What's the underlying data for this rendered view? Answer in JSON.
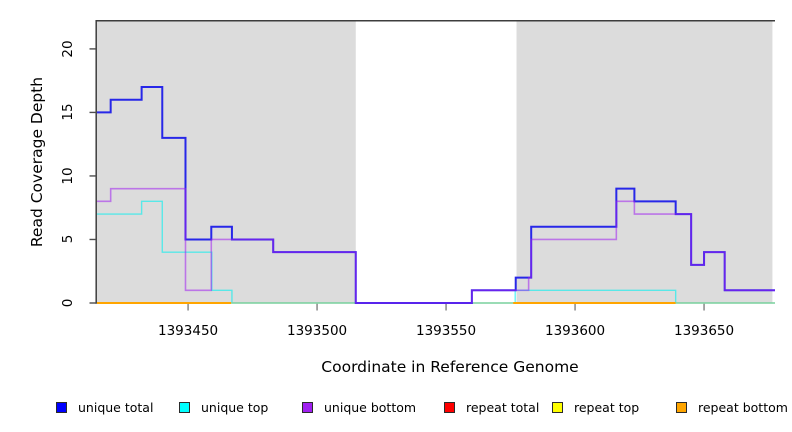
{
  "chart_data": {
    "type": "line",
    "subtype": "step-post",
    "title": "",
    "xlabel": "Coordinate in Reference Genome",
    "ylabel": "Read Coverage Depth",
    "xlim": [
      1393414.7,
      1393677.5
    ],
    "ylim": [
      0,
      22.2
    ],
    "x_ticks": [
      1393450,
      1393500,
      1393550,
      1393600,
      1393650
    ],
    "y_ticks": [
      0,
      5,
      10,
      15,
      20
    ],
    "grid": false,
    "legend_position": "bottom-horizontal",
    "background_color": "#ffffff",
    "shaded_region_color": "#dcdcdc",
    "shaded_regions": [
      {
        "x0": 1393414.7,
        "x1": 1393515
      },
      {
        "x0": 1393577.3,
        "x1": 1393676.5
      }
    ],
    "series": [
      {
        "name": "unique top",
        "color": "rgba(0,240,240,0.6)",
        "width": 1.4,
        "steps": [
          [
            1393414.7,
            7
          ],
          [
            1393432,
            8
          ],
          [
            1393440,
            4
          ],
          [
            1393459.2,
            1
          ],
          [
            1393467,
            0
          ],
          [
            1393576.8,
            1
          ],
          [
            1393639,
            0
          ]
        ],
        "x_end": 1393677.5
      },
      {
        "name": "repeat bottom",
        "color": "#ffa500",
        "width": 2,
        "zero_segments": [
          [
            1393414.7,
            1393466.7
          ],
          [
            1393576,
            1393639
          ]
        ]
      },
      {
        "name": "unlabeled-green-baseline",
        "color": "#8ccb8c",
        "width": 1.3,
        "in_legend": false,
        "zero_segments": [
          [
            1393466.7,
            1393576
          ],
          [
            1393639,
            1393677.5
          ]
        ]
      },
      {
        "name": "unique total",
        "color": "#2727e8",
        "width": 2,
        "steps": [
          [
            1393414.7,
            15
          ],
          [
            1393420,
            16
          ],
          [
            1393432,
            17
          ],
          [
            1393440,
            13
          ],
          [
            1393449,
            5
          ],
          [
            1393459,
            6
          ],
          [
            1393467,
            5
          ],
          [
            1393483,
            4
          ],
          [
            1393515,
            0
          ],
          [
            1393560,
            1
          ],
          [
            1393577,
            2
          ],
          [
            1393583,
            6
          ],
          [
            1393616,
            9
          ],
          [
            1393623,
            8
          ],
          [
            1393639,
            7
          ],
          [
            1393645,
            3
          ],
          [
            1393650,
            4
          ],
          [
            1393658,
            1
          ]
        ],
        "x_end": 1393677.5
      },
      {
        "name": "unique bottom",
        "color": "rgba(160,32,240,0.55)",
        "width": 1.6,
        "steps": [
          [
            1393414.7,
            8
          ],
          [
            1393420,
            9
          ],
          [
            1393449,
            1
          ],
          [
            1393459,
            5
          ],
          [
            1393483,
            4
          ],
          [
            1393515,
            0
          ],
          [
            1393560,
            1
          ],
          [
            1393582,
            2
          ],
          [
            1393583,
            5
          ],
          [
            1393616,
            8
          ],
          [
            1393623,
            7
          ],
          [
            1393645,
            3
          ],
          [
            1393650,
            4
          ],
          [
            1393658,
            1
          ]
        ],
        "x_end": 1393677.5
      },
      {
        "name": "repeat total",
        "color": "#ff0000",
        "width": 2,
        "note": "in legend only, no visible line in plotted range"
      },
      {
        "name": "repeat top",
        "color": "#ffff00",
        "width": 2,
        "note": "in legend only, no visible line in plotted range"
      }
    ],
    "legend_items": [
      {
        "label": "unique total",
        "color": "#0000ff"
      },
      {
        "label": "unique top",
        "color": "#00ffff"
      },
      {
        "label": "unique bottom",
        "color": "#a020f0"
      },
      {
        "label": "repeat total",
        "color": "#ff0000"
      },
      {
        "label": "repeat top",
        "color": "#ffff00"
      },
      {
        "label": "repeat bottom",
        "color": "#ffa500"
      }
    ]
  }
}
